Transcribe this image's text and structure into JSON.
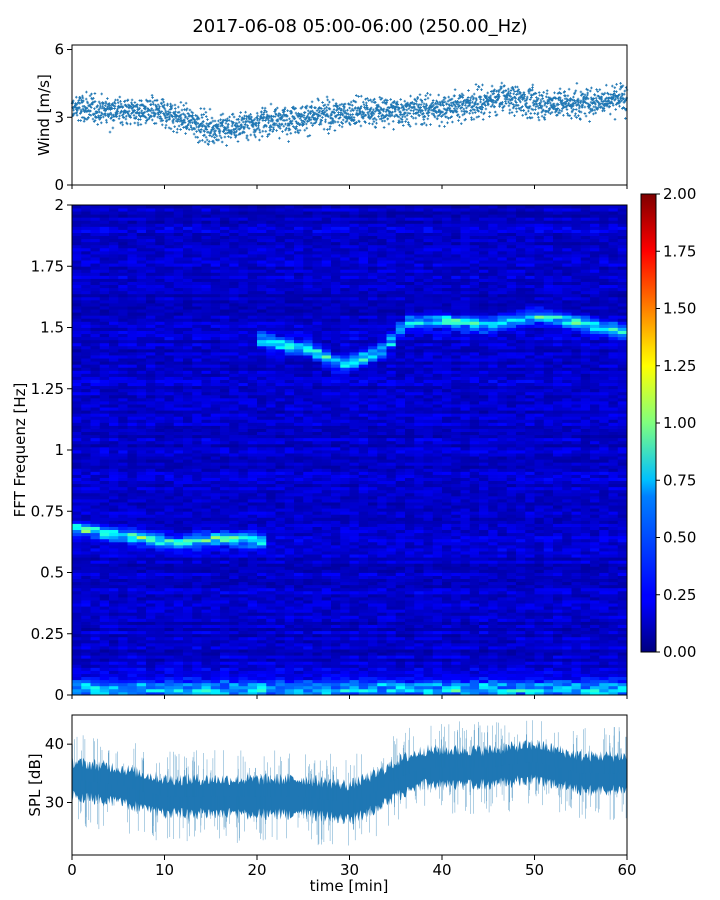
{
  "title": "2017-06-08 05:00-06:00 (250.00_Hz)",
  "chart_data": [
    {
      "type": "scatter",
      "name": "wind-panel",
      "ylabel": "Wind [m/s]",
      "xlim": [
        0,
        60
      ],
      "ylim": [
        0,
        6.2
      ],
      "yticks": [
        0,
        3,
        6
      ],
      "ytick_labels": [
        "0",
        "3",
        "6"
      ],
      "marker": "+",
      "color": "#1f77b4",
      "trend": {
        "x": [
          0,
          5,
          10,
          13,
          15,
          17,
          20,
          25,
          30,
          35,
          40,
          45,
          47,
          50,
          55,
          58,
          60
        ],
        "y": [
          3.4,
          3.3,
          3.2,
          2.8,
          2.5,
          2.5,
          2.8,
          3.0,
          3.2,
          3.3,
          3.4,
          3.7,
          3.9,
          3.6,
          3.6,
          3.8,
          3.9
        ]
      },
      "spread": 0.6,
      "x_points_per_min": 40
    },
    {
      "type": "heatmap",
      "name": "fft-spectrogram",
      "ylabel": "FFT Frequenz [Hz]",
      "xlim": [
        0,
        60
      ],
      "ylim": [
        0,
        2
      ],
      "yticks": [
        0,
        0.25,
        0.5,
        0.75,
        1,
        1.25,
        1.5,
        1.75,
        2
      ],
      "ytick_labels": [
        "0",
        "0.25",
        "0.5",
        "0.75",
        "1",
        "1.25",
        "1.5",
        "1.75",
        "2"
      ],
      "colormap": "jet",
      "clim": [
        0,
        2
      ],
      "colorbar_ticks": [
        0,
        0.25,
        0.5,
        0.75,
        1,
        1.25,
        1.5,
        1.75,
        2
      ],
      "colorbar_tick_labels": [
        "0.00",
        "0.25",
        "0.50",
        "0.75",
        "1.00",
        "1.25",
        "1.50",
        "1.75",
        "2.00"
      ],
      "background_level": 0.14,
      "bands": [
        {
          "name": "low-mode",
          "x": [
            0,
            4,
            8,
            12,
            16,
            20,
            21
          ],
          "f": [
            0.68,
            0.66,
            0.64,
            0.62,
            0.64,
            0.63,
            0.62
          ],
          "level": 0.9
        },
        {
          "name": "mid-mode",
          "x": [
            20,
            23,
            26,
            29,
            32,
            34,
            36,
            40,
            45,
            50,
            55,
            60
          ],
          "f": [
            1.45,
            1.43,
            1.41,
            1.35,
            1.38,
            1.42,
            1.52,
            1.53,
            1.51,
            1.55,
            1.52,
            1.48
          ],
          "level": 0.85
        },
        {
          "name": "near-zero",
          "x": [
            0,
            60
          ],
          "f": [
            0.02,
            0.02
          ],
          "level": 0.7
        }
      ]
    },
    {
      "type": "area",
      "name": "spl-panel",
      "xlabel": "time [min]",
      "ylabel": "SPL [dB]",
      "xlim": [
        0,
        60
      ],
      "ylim": [
        21,
        45
      ],
      "xticks": [
        0,
        10,
        20,
        30,
        40,
        50,
        60
      ],
      "xtick_labels": [
        "0",
        "10",
        "20",
        "30",
        "40",
        "50",
        "60"
      ],
      "yticks": [
        30,
        40
      ],
      "ytick_labels": [
        "30",
        "40"
      ],
      "color": "#1f77b4",
      "trend": {
        "x": [
          0,
          5,
          10,
          15,
          20,
          25,
          30,
          33,
          35,
          38,
          40,
          45,
          50,
          55,
          60
        ],
        "y": [
          34,
          33,
          31,
          31,
          31,
          31,
          30,
          32,
          34,
          36,
          36,
          36,
          37,
          35,
          35
        ]
      },
      "band_half_width": 3.5
    }
  ]
}
